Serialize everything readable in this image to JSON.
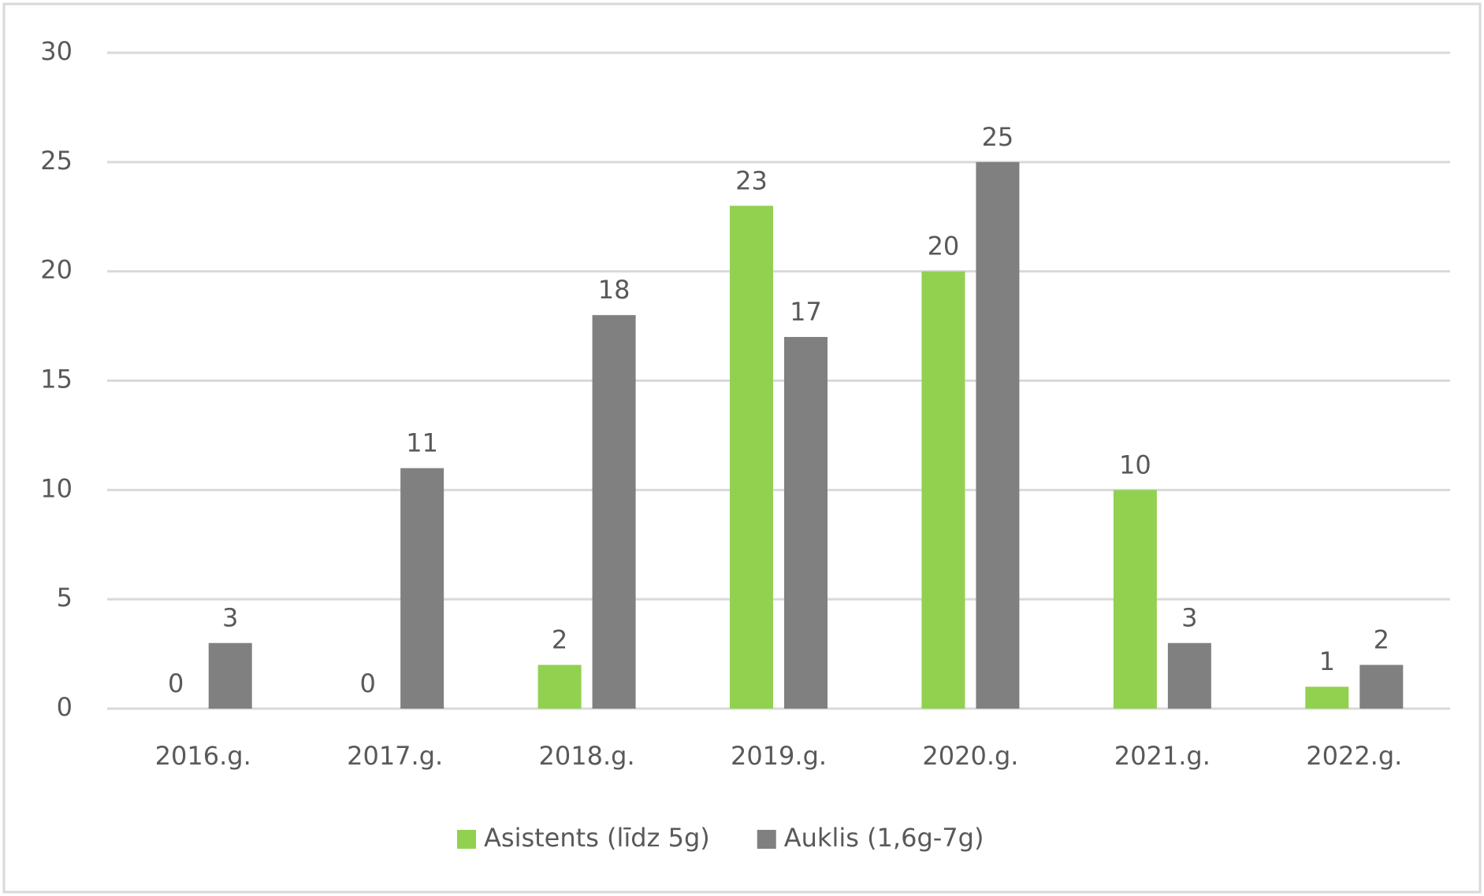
{
  "chart_data": {
    "type": "bar",
    "categories": [
      "2016.g.",
      "2017.g.",
      "2018.g.",
      "2019.g.",
      "2020.g.",
      "2021.g.",
      "2022.g."
    ],
    "series": [
      {
        "name": "Asistents (līdz 5g)",
        "color": "#92d050",
        "values": [
          0,
          0,
          2,
          23,
          20,
          10,
          1
        ]
      },
      {
        "name": "Auklis (1,6g-7g)",
        "color": "#808080",
        "values": [
          3,
          11,
          18,
          17,
          25,
          3,
          2
        ]
      }
    ],
    "ylim": [
      0,
      30
    ],
    "yticks": [
      0,
      5,
      10,
      15,
      20,
      25,
      30
    ],
    "grid": true,
    "legend": "bottom"
  }
}
